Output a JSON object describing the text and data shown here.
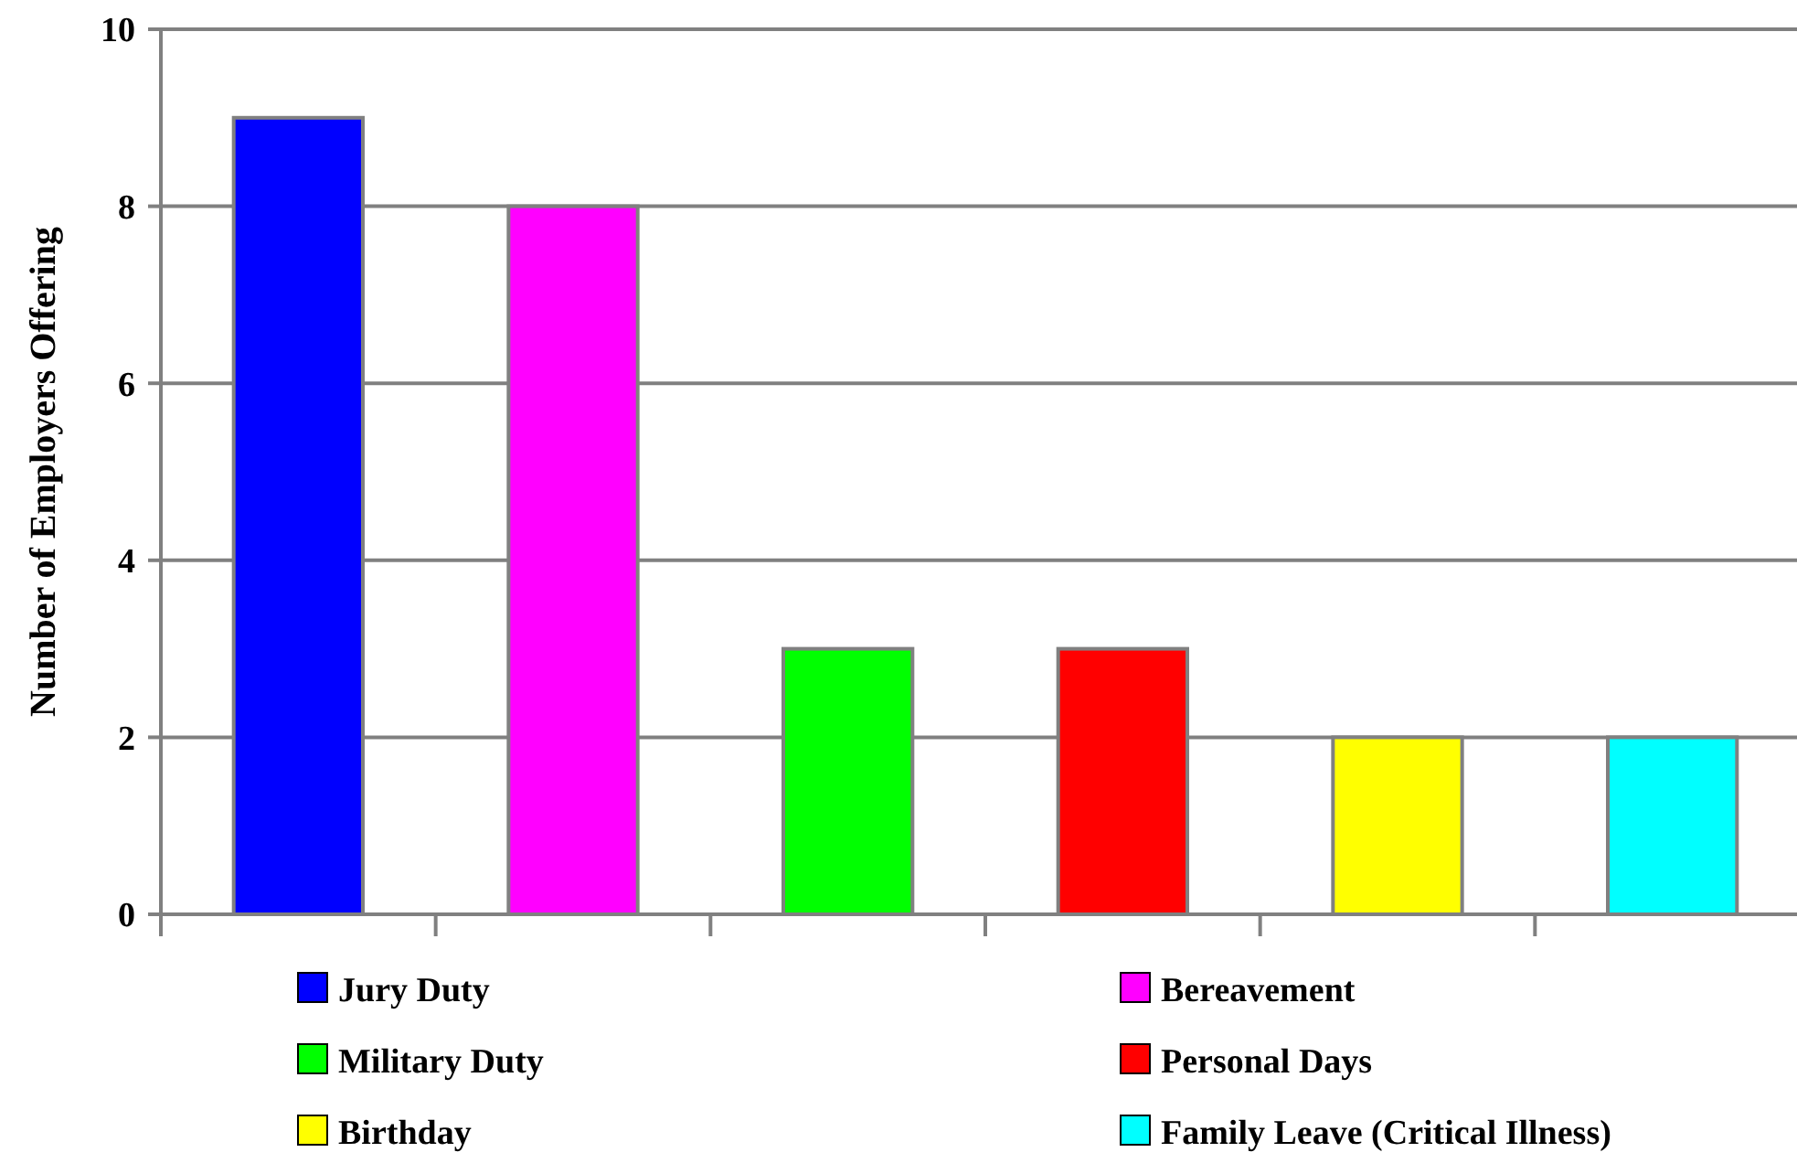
{
  "chart_data": {
    "type": "bar",
    "ylabel": "Number of Employers Offering",
    "categories": [
      null,
      null,
      null,
      null,
      null,
      null
    ],
    "series": [
      {
        "name": "Jury Duty",
        "color": "#0000ff",
        "values": [
          9,
          null,
          null,
          null,
          null,
          null
        ]
      },
      {
        "name": "Bereavement",
        "color": "#ff00ff",
        "values": [
          null,
          8,
          null,
          null,
          null,
          null
        ]
      },
      {
        "name": "Military Duty",
        "color": "#00ff00",
        "values": [
          null,
          null,
          3,
          null,
          null,
          null
        ]
      },
      {
        "name": "Personal Days",
        "color": "#ff0000",
        "values": [
          null,
          null,
          null,
          3,
          null,
          null
        ]
      },
      {
        "name": "Birthday",
        "color": "#ffff00",
        "values": [
          null,
          null,
          null,
          null,
          2,
          null
        ]
      },
      {
        "name": "Family Leave (Critical Illness)",
        "color": "#00ffff",
        "values": [
          null,
          null,
          null,
          null,
          null,
          2
        ]
      }
    ],
    "ylim": [
      0,
      10
    ],
    "yticks": [
      0,
      2,
      4,
      6,
      8,
      10
    ],
    "grid": "y",
    "legend": "bottom"
  }
}
